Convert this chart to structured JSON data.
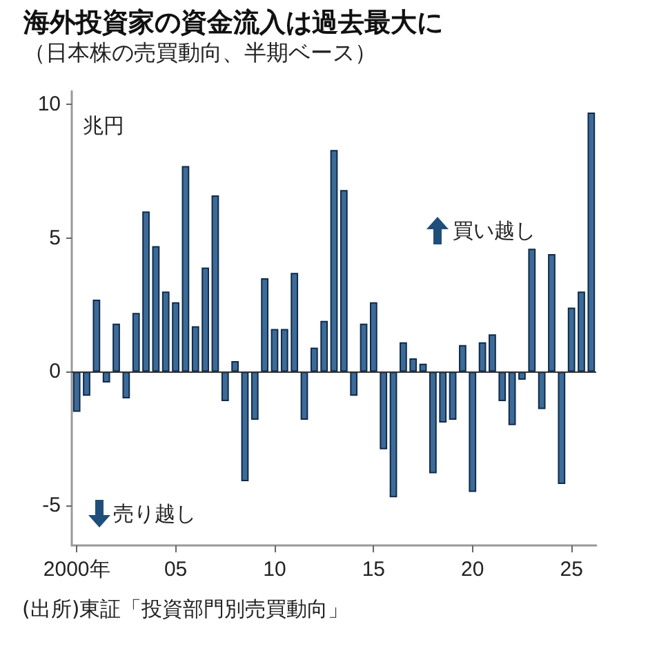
{
  "chart_data": {
    "type": "bar",
    "title": "海外投資家の資金流入は過去最大に",
    "subtitle": "（日本株の売買動向、半期ベース）",
    "ylabel": "兆円",
    "categories": [
      "2000年",
      null,
      null,
      null,
      null,
      null,
      null,
      null,
      null,
      null,
      "05",
      null,
      null,
      null,
      null,
      null,
      null,
      null,
      null,
      null,
      "10",
      null,
      null,
      null,
      null,
      null,
      null,
      null,
      null,
      null,
      "15",
      null,
      null,
      null,
      null,
      null,
      null,
      null,
      null,
      null,
      "20",
      null,
      null,
      null,
      null,
      null,
      null,
      null,
      null,
      null,
      "25",
      null,
      null
    ],
    "values": [
      -1.5,
      -0.9,
      2.7,
      -0.4,
      1.8,
      -1.0,
      2.2,
      6.0,
      4.7,
      3.0,
      2.6,
      7.7,
      1.7,
      3.9,
      6.6,
      -1.1,
      0.4,
      -4.1,
      -1.8,
      3.5,
      1.6,
      1.6,
      3.7,
      -1.8,
      0.9,
      1.9,
      8.3,
      6.8,
      -0.9,
      1.8,
      2.6,
      -2.9,
      -4.7,
      1.1,
      0.5,
      0.3,
      -3.8,
      -1.9,
      -1.8,
      1.0,
      -4.5,
      1.1,
      1.4,
      -1.1,
      -2.0,
      -0.3,
      4.6,
      -1.4,
      4.4,
      -4.2,
      2.4,
      3.0,
      9.7
    ],
    "color": "#3d6b98",
    "ylim": [
      -6.5,
      10.5
    ],
    "yticks": [
      -5,
      0,
      5,
      10
    ],
    "grid": false,
    "ref_lines": [
      {
        "axis": "y",
        "value": 0,
        "color": "#333333"
      }
    ],
    "annotations": [
      "買い越し",
      "売り越し",
      "(出所)東証「投資部門別売買動向」"
    ]
  }
}
